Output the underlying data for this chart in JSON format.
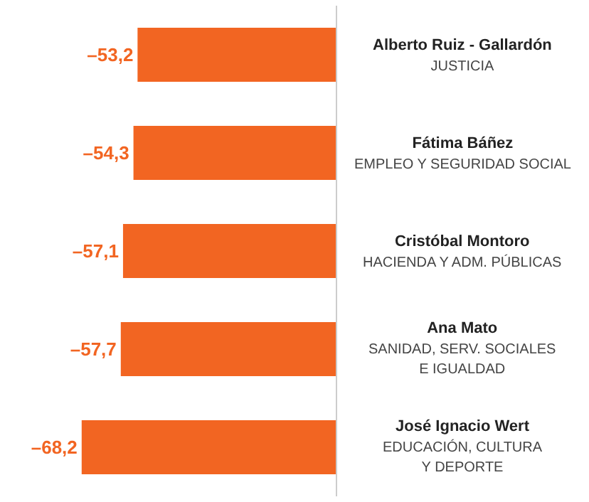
{
  "chart_data": {
    "type": "bar",
    "orientation": "horizontal",
    "categories": [
      "Alberto Ruiz - Gallardón\nJUSTICIA",
      "Fátima Báñez\nEMPLEO Y SEGURIDAD SOCIAL",
      "Cristóbal Montoro\nHACIENDA Y ADM. PÚBLICAS",
      "Ana Mato\nSANIDAD, SERV. SOCIALES\nE IGUALDAD",
      "José Ignacio Wert\nEDUCACIÓN, CULTURA\nY DEPORTE"
    ],
    "values": [
      -53.2,
      -54.3,
      -57.1,
      -57.7,
      -68.2
    ],
    "value_labels": [
      "–53,2",
      "–54,3",
      "–57,1",
      "–57,7",
      "–68,2"
    ],
    "color": "#f26522",
    "tick_labels": false,
    "legend": false
  }
}
